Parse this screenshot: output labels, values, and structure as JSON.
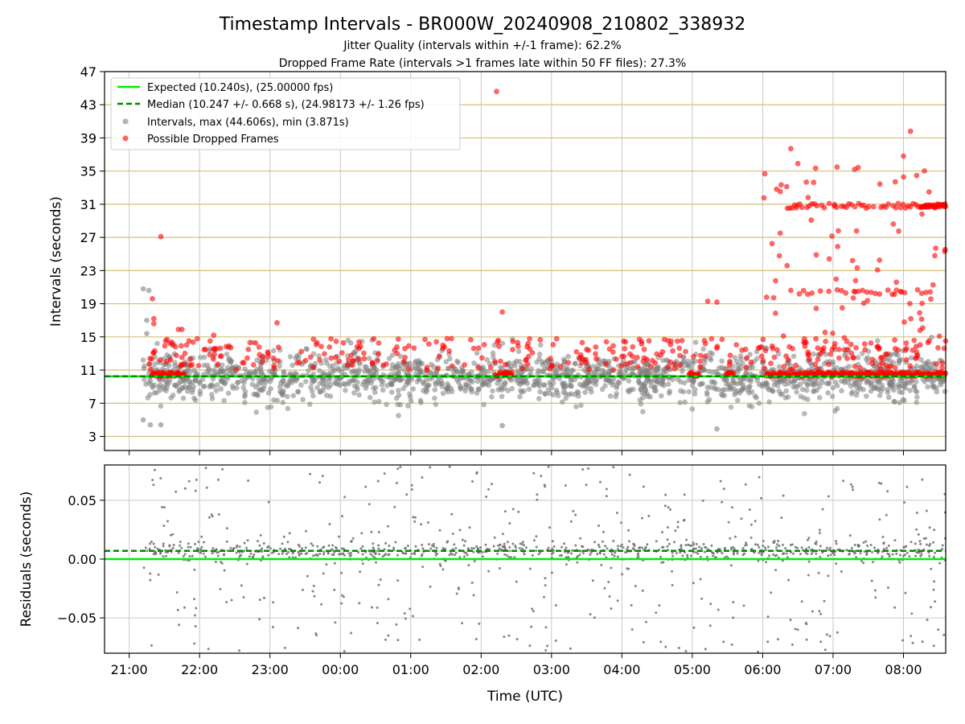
{
  "chart_data": {
    "type": "scatter",
    "title": "Timestamp Intervals - BR000W_20240908_210802_338932",
    "subtitle_1": "Jitter Quality (intervals within +/-1 frame): 62.2%",
    "subtitle_2": "Dropped Frame Rate (intervals >1 frames late within 50 FF files): 27.3%",
    "xlabel": "Time (UTC)",
    "x_ticks": [
      "21:00",
      "22:00",
      "23:00",
      "00:00",
      "01:00",
      "02:00",
      "03:00",
      "04:00",
      "05:00",
      "06:00",
      "07:00",
      "08:00"
    ],
    "x_range_hours": [
      20.65,
      32.6
    ],
    "top_panel": {
      "ylabel": "Intervals (seconds)",
      "ylim": [
        1.3,
        47
      ],
      "y_ticks": [
        "3",
        "7",
        "11",
        "15",
        "19",
        "23",
        "27",
        "31",
        "35",
        "39",
        "43",
        "47"
      ],
      "expected_interval": 10.24,
      "median_interval": 10.247,
      "legend": {
        "position": "upper-left",
        "entries": [
          "Expected (10.240s), (25.00000 fps)",
          "Median (10.247 +/- 0.668 s), (24.98173 +/- 1.26 fps)",
          "Intervals, max (44.606s), min (3.871s)",
          "Possible Dropped Frames"
        ]
      },
      "intervals_max": 44.606,
      "intervals_min": 3.871,
      "notable_dropped_points": [
        {
          "t": 21.45,
          "y": 27.1
        },
        {
          "t": 22.2,
          "y": 15.2
        },
        {
          "t": 23.1,
          "y": 16.7
        },
        {
          "t": 26.22,
          "y": 44.6
        },
        {
          "t": 26.3,
          "y": 18.0
        },
        {
          "t": 29.22,
          "y": 19.3
        },
        {
          "t": 29.35,
          "y": 19.2
        },
        {
          "t": 30.4,
          "y": 37.7
        },
        {
          "t": 30.5,
          "y": 35.9
        },
        {
          "t": 32.1,
          "y": 39.8
        },
        {
          "t": 32.0,
          "y": 36.8
        }
      ]
    },
    "bottom_panel": {
      "ylabel": "Residuals (seconds)",
      "ylim": [
        -0.08,
        0.08
      ],
      "y_ticks": [
        "−0.05",
        "0.00",
        "0.05"
      ],
      "expected_residual": 0.0,
      "median_residual": 0.007
    },
    "colors": {
      "expected": "#00ee00",
      "median": "#008800",
      "intervals": "#808080",
      "dropped": "#ff0000",
      "hgrid_top": "#d4c07a",
      "grid": "#c8c8c8"
    }
  }
}
